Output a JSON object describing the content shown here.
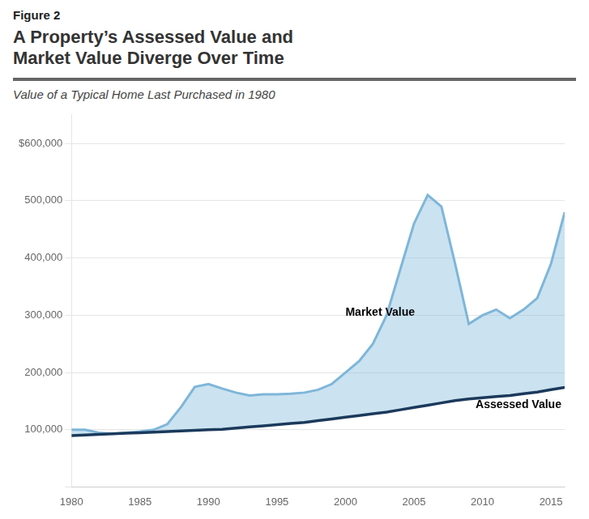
{
  "chart_data": {
    "type": "line",
    "figure_label": "Figure 2",
    "title": "A Property’s Assessed Value and\nMarket Value Diverge Over Time",
    "subtitle": "Value of a Typical Home Last Purchased in 1980",
    "x": [
      1980,
      1981,
      1982,
      1983,
      1984,
      1985,
      1986,
      1987,
      1988,
      1989,
      1990,
      1991,
      1992,
      1993,
      1994,
      1995,
      1996,
      1997,
      1998,
      1999,
      2000,
      2001,
      2002,
      2003,
      2004,
      2005,
      2006,
      2007,
      2008,
      2009,
      2010,
      2011,
      2012,
      2013,
      2014,
      2015,
      2016
    ],
    "series": [
      {
        "name": "Market Value",
        "color": "#7EB6D9",
        "values": [
          100000,
          100000,
          95000,
          93000,
          95000,
          97000,
          100000,
          110000,
          140000,
          175000,
          180000,
          172000,
          165000,
          160000,
          162000,
          162000,
          163000,
          165000,
          170000,
          180000,
          200000,
          220000,
          250000,
          300000,
          380000,
          460000,
          510000,
          490000,
          390000,
          285000,
          300000,
          310000,
          295000,
          310000,
          330000,
          390000,
          480000
        ]
      },
      {
        "name": "Assessed Value",
        "color": "#1B3A5C",
        "values": [
          90000,
          91000,
          92000,
          93000,
          94000,
          95000,
          96000,
          97000,
          98000,
          99000,
          100000,
          101000,
          103000,
          105000,
          107000,
          109000,
          111000,
          113000,
          116000,
          119000,
          122000,
          125000,
          128000,
          131000,
          135000,
          139000,
          143000,
          147000,
          151000,
          154000,
          156000,
          158000,
          160000,
          163000,
          166000,
          170000,
          174000
        ]
      }
    ],
    "annotations": [
      {
        "text": "Market Value",
        "x": 2000,
        "y": 305000
      },
      {
        "text": "Assessed Value",
        "x": 2009.5,
        "y": 143000
      }
    ],
    "xlim": [
      1980,
      2016
    ],
    "xticks": [
      1980,
      1985,
      1990,
      1995,
      2000,
      2005,
      2010,
      2015
    ],
    "ylim": [
      0,
      650000
    ],
    "yticks": [
      {
        "value": 0,
        "label": ""
      },
      {
        "value": 100000,
        "label": "100,000"
      },
      {
        "value": 200000,
        "label": "200,000"
      },
      {
        "value": 300000,
        "label": "300,000"
      },
      {
        "value": 400000,
        "label": "400,000"
      },
      {
        "value": 500000,
        "label": "500,000"
      },
      {
        "value": 600000,
        "label": "$600,000"
      }
    ],
    "grid": true,
    "legend": false
  }
}
